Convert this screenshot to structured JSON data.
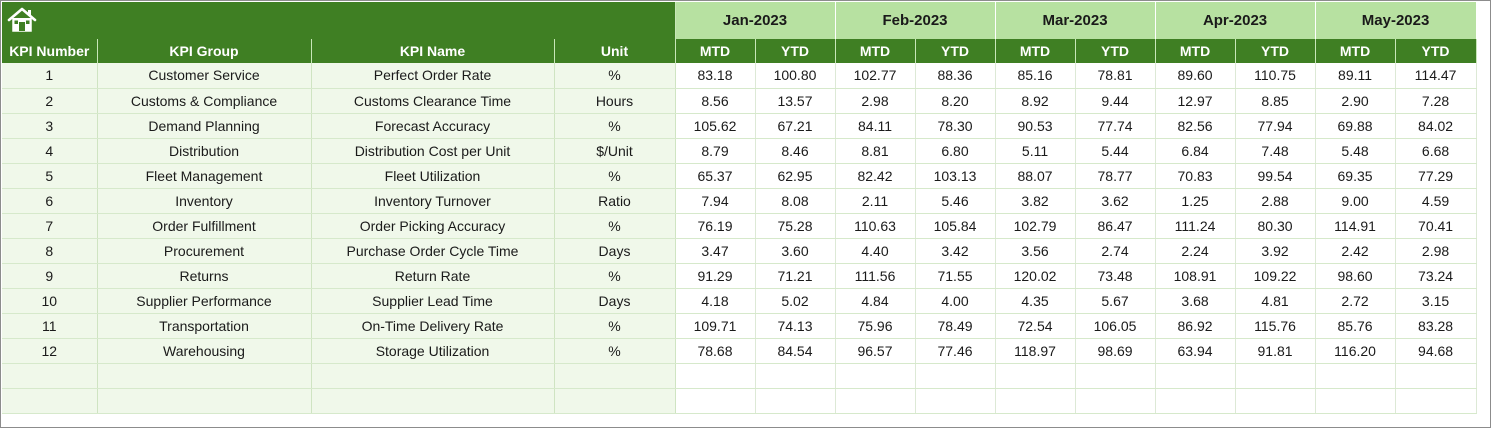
{
  "header": {
    "home_icon": "home-icon",
    "months": [
      "Jan-2023",
      "Feb-2023",
      "Mar-2023",
      "Apr-2023",
      "May-2023"
    ],
    "columns": [
      "KPI Number",
      "KPI Group",
      "KPI Name",
      "Unit"
    ],
    "sub_columns": [
      "MTD",
      "YTD"
    ]
  },
  "colors": {
    "header_green": "#3f7f23",
    "month_green": "#b7e1a1",
    "info_bg": "#f0f8ea"
  },
  "rows": [
    {
      "num": "1",
      "group": "Customer Service",
      "name": "Perfect Order Rate",
      "unit": "%",
      "values": [
        "83.18",
        "100.80",
        "102.77",
        "88.36",
        "85.16",
        "78.81",
        "89.60",
        "110.75",
        "89.11",
        "114.47"
      ]
    },
    {
      "num": "2",
      "group": "Customs & Compliance",
      "name": "Customs Clearance Time",
      "unit": "Hours",
      "values": [
        "8.56",
        "13.57",
        "2.98",
        "8.20",
        "8.92",
        "9.44",
        "12.97",
        "8.85",
        "2.90",
        "7.28"
      ]
    },
    {
      "num": "3",
      "group": "Demand Planning",
      "name": "Forecast Accuracy",
      "unit": "%",
      "values": [
        "105.62",
        "67.21",
        "84.11",
        "78.30",
        "90.53",
        "77.74",
        "82.56",
        "77.94",
        "69.88",
        "84.02"
      ]
    },
    {
      "num": "4",
      "group": "Distribution",
      "name": "Distribution Cost per Unit",
      "unit": "$/Unit",
      "values": [
        "8.79",
        "8.46",
        "8.81",
        "6.80",
        "5.11",
        "5.44",
        "6.84",
        "7.48",
        "5.48",
        "6.68"
      ]
    },
    {
      "num": "5",
      "group": "Fleet Management",
      "name": "Fleet Utilization",
      "unit": "%",
      "values": [
        "65.37",
        "62.95",
        "82.42",
        "103.13",
        "88.07",
        "78.77",
        "70.83",
        "99.54",
        "69.35",
        "77.29"
      ]
    },
    {
      "num": "6",
      "group": "Inventory",
      "name": "Inventory Turnover",
      "unit": "Ratio",
      "values": [
        "7.94",
        "8.08",
        "2.11",
        "5.46",
        "3.82",
        "3.62",
        "1.25",
        "2.88",
        "9.00",
        "4.59"
      ]
    },
    {
      "num": "7",
      "group": "Order Fulfillment",
      "name": "Order Picking Accuracy",
      "unit": "%",
      "values": [
        "76.19",
        "75.28",
        "110.63",
        "105.84",
        "102.79",
        "86.47",
        "111.24",
        "80.30",
        "114.91",
        "70.41"
      ]
    },
    {
      "num": "8",
      "group": "Procurement",
      "name": "Purchase Order Cycle Time",
      "unit": "Days",
      "values": [
        "3.47",
        "3.60",
        "4.40",
        "3.42",
        "3.56",
        "2.74",
        "2.24",
        "3.92",
        "2.42",
        "2.98"
      ]
    },
    {
      "num": "9",
      "group": "Returns",
      "name": "Return Rate",
      "unit": "%",
      "values": [
        "91.29",
        "71.21",
        "111.56",
        "71.55",
        "120.02",
        "73.48",
        "108.91",
        "109.22",
        "98.60",
        "73.24"
      ]
    },
    {
      "num": "10",
      "group": "Supplier Performance",
      "name": "Supplier Lead Time",
      "unit": "Days",
      "values": [
        "4.18",
        "5.02",
        "4.84",
        "4.00",
        "4.35",
        "5.67",
        "3.68",
        "4.81",
        "2.72",
        "3.15"
      ]
    },
    {
      "num": "11",
      "group": "Transportation",
      "name": "On-Time Delivery Rate",
      "unit": "%",
      "values": [
        "109.71",
        "74.13",
        "75.96",
        "78.49",
        "72.54",
        "106.05",
        "86.92",
        "115.76",
        "85.76",
        "83.28"
      ]
    },
    {
      "num": "12",
      "group": "Warehousing",
      "name": "Storage Utilization",
      "unit": "%",
      "values": [
        "78.68",
        "84.54",
        "96.57",
        "77.46",
        "118.97",
        "98.69",
        "63.94",
        "91.81",
        "116.20",
        "94.68"
      ]
    },
    {
      "num": "",
      "group": "",
      "name": "",
      "unit": "",
      "values": [
        "",
        "",
        "",
        "",
        "",
        "",
        "",
        "",
        "",
        ""
      ]
    },
    {
      "num": "",
      "group": "",
      "name": "",
      "unit": "",
      "values": [
        "",
        "",
        "",
        "",
        "",
        "",
        "",
        "",
        "",
        ""
      ]
    }
  ]
}
